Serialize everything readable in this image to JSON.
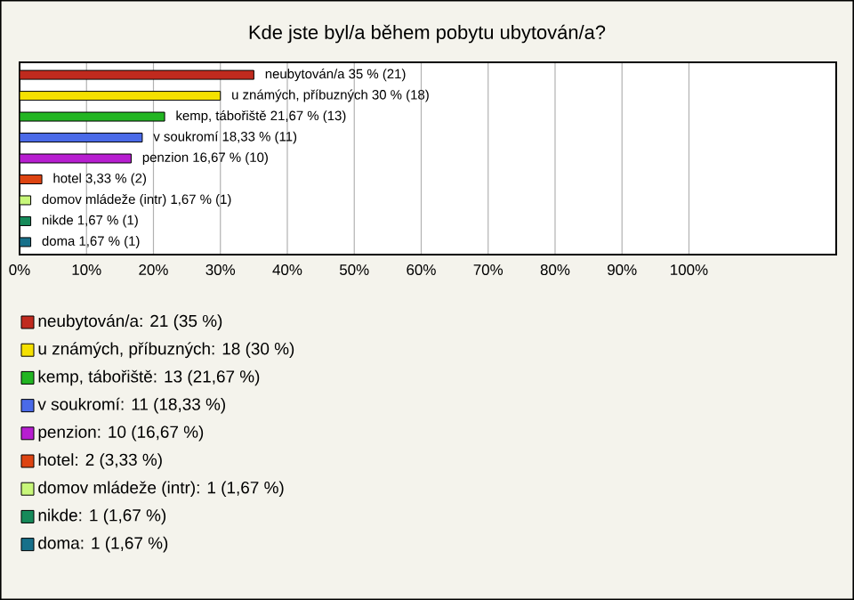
{
  "chart_data": {
    "type": "bar",
    "orientation": "horizontal",
    "title": "Kde jste byl/a během pobytu ubytován/a?",
    "categories": [
      null,
      null,
      null,
      null,
      null,
      null,
      null,
      null,
      null
    ],
    "series": [
      {
        "name": "neubytován/a: 21 (35 %)",
        "color": "#c02a1e",
        "values": [
          35,
          null,
          null,
          null,
          null,
          null,
          null,
          null,
          null
        ],
        "value_labels": [
          "neubytován/a 35 % (21)",
          null,
          null,
          null,
          null,
          null,
          null,
          null,
          null
        ]
      },
      {
        "name": "u známých, příbuzných: 18 (30 %)",
        "color": "#f5e000",
        "values": [
          null,
          30,
          null,
          null,
          null,
          null,
          null,
          null,
          null
        ],
        "value_labels": [
          null,
          "u známých, příbuzných 30 % (18)",
          null,
          null,
          null,
          null,
          null,
          null,
          null
        ]
      },
      {
        "name": "kemp, tábořiště: 13 (21,67 %)",
        "color": "#22b522",
        "values": [
          null,
          null,
          21.67,
          null,
          null,
          null,
          null,
          null,
          null
        ],
        "value_labels": [
          null,
          null,
          "kemp, tábořiště 21,67 % (13)",
          null,
          null,
          null,
          null,
          null,
          null
        ]
      },
      {
        "name": "v soukromí: 11 (18,33 %)",
        "color": "#4a6ae8",
        "values": [
          null,
          null,
          null,
          18.33,
          null,
          null,
          null,
          null,
          null
        ],
        "value_labels": [
          null,
          null,
          null,
          "v soukromí 18,33 % (11)",
          null,
          null,
          null,
          null,
          null
        ]
      },
      {
        "name": "penzion: 10 (16,67 %)",
        "color": "#b71ed0",
        "values": [
          null,
          null,
          null,
          null,
          16.67,
          null,
          null,
          null,
          null
        ],
        "value_labels": [
          null,
          null,
          null,
          null,
          "penzion 16,67 % (10)",
          null,
          null,
          null,
          null
        ]
      },
      {
        "name": "hotel: 2 (3,33 %)",
        "color": "#dd4412",
        "values": [
          null,
          null,
          null,
          null,
          null,
          3.33,
          null,
          null,
          null
        ],
        "value_labels": [
          null,
          null,
          null,
          null,
          null,
          "hotel 3,33 % (2)",
          null,
          null,
          null
        ]
      },
      {
        "name": "domov mládeže (intr): 1 (1,67 %)",
        "color": "#c8f77a",
        "values": [
          null,
          null,
          null,
          null,
          null,
          null,
          1.67,
          null,
          null
        ],
        "value_labels": [
          null,
          null,
          null,
          null,
          null,
          null,
          "domov mládeže (intr) 1,67 % (1)",
          null,
          null
        ]
      },
      {
        "name": "nikde: 1 (1,67 %)",
        "color": "#168a5a",
        "values": [
          null,
          null,
          null,
          null,
          null,
          null,
          null,
          1.67,
          null
        ],
        "value_labels": [
          null,
          null,
          null,
          null,
          null,
          null,
          null,
          "nikde 1,67 % (1)",
          null
        ]
      },
      {
        "name": "doma: 1 (1,67 %)",
        "color": "#17708a",
        "values": [
          null,
          null,
          null,
          null,
          null,
          null,
          null,
          null,
          1.67
        ],
        "value_labels": [
          null,
          null,
          null,
          null,
          null,
          null,
          null,
          null,
          "doma 1,67 % (1)"
        ]
      }
    ],
    "xlim": [
      0,
      122
    ],
    "xticks": [
      {
        "value": 0,
        "label": "0%"
      },
      {
        "value": 10,
        "label": "10%"
      },
      {
        "value": 20,
        "label": "20%"
      },
      {
        "value": 30,
        "label": "30%"
      },
      {
        "value": 40,
        "label": "40%"
      },
      {
        "value": 50,
        "label": "50%"
      },
      {
        "value": 60,
        "label": "60%"
      },
      {
        "value": 70,
        "label": "70%"
      },
      {
        "value": 80,
        "label": "80%"
      },
      {
        "value": 90,
        "label": "90%"
      },
      {
        "value": 100,
        "label": "100%"
      }
    ],
    "grid": "x",
    "legend": "bottom",
    "tick_labels": "x"
  }
}
